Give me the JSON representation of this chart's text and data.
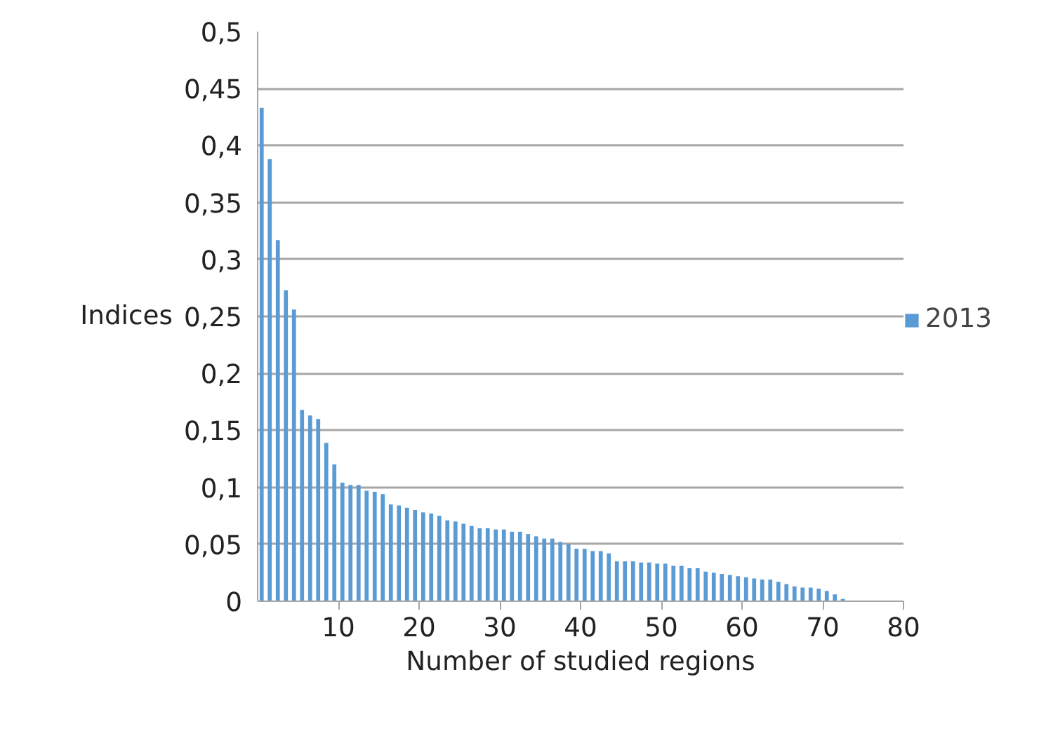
{
  "chart_data": {
    "type": "bar",
    "xlabel": "Number of studied regions",
    "ylabel": "Indices",
    "x": [
      0.5,
      1.5,
      2.5,
      3.5,
      4.5,
      5.5,
      6.5,
      7.5,
      8.5,
      9.5,
      10.5,
      11.5,
      12.5,
      13.5,
      14.5,
      15.5,
      16.5,
      17.5,
      18.5,
      19.5,
      20.5,
      21.5,
      22.5,
      23.5,
      24.5,
      25.5,
      26.5,
      27.5,
      28.5,
      29.5,
      30.5,
      31.5,
      32.5,
      33.5,
      34.5,
      35.5,
      36.5,
      37.5,
      38.5,
      39.5,
      40.5,
      41.5,
      42.5,
      43.5,
      44.5,
      45.5,
      46.5,
      47.5,
      48.5,
      49.5,
      50.5,
      51.5,
      52.5,
      53.5,
      54.5,
      55.5,
      56.5,
      57.5,
      58.5,
      59.5,
      60.5,
      61.5,
      62.5,
      63.5,
      64.5,
      65.5,
      66.5,
      67.5,
      68.5,
      69.5,
      70.5,
      71.5,
      72.5
    ],
    "series": [
      {
        "name": "2013",
        "color": "#5b9bd5",
        "values": [
          0.433,
          0.388,
          0.317,
          0.273,
          0.256,
          0.168,
          0.163,
          0.16,
          0.139,
          0.12,
          0.104,
          0.102,
          0.102,
          0.097,
          0.096,
          0.094,
          0.085,
          0.084,
          0.082,
          0.08,
          0.078,
          0.077,
          0.075,
          0.071,
          0.07,
          0.068,
          0.066,
          0.064,
          0.064,
          0.063,
          0.063,
          0.061,
          0.061,
          0.059,
          0.057,
          0.055,
          0.055,
          0.052,
          0.05,
          0.046,
          0.046,
          0.044,
          0.044,
          0.042,
          0.035,
          0.035,
          0.035,
          0.034,
          0.034,
          0.033,
          0.033,
          0.031,
          0.031,
          0.029,
          0.029,
          0.026,
          0.025,
          0.024,
          0.023,
          0.022,
          0.021,
          0.02,
          0.019,
          0.019,
          0.017,
          0.015,
          0.013,
          0.012,
          0.012,
          0.011,
          0.009,
          0.006,
          0.002
        ]
      }
    ],
    "xlim": [
      0,
      80
    ],
    "xticks": [
      10,
      20,
      30,
      40,
      50,
      60,
      70,
      80
    ],
    "ylim": [
      0,
      0.5
    ],
    "yticks": [
      {
        "value": 0,
        "label": "0"
      },
      {
        "value": 0.05,
        "label": "0,05"
      },
      {
        "value": 0.1,
        "label": "0,1"
      },
      {
        "value": 0.15,
        "label": "0,15"
      },
      {
        "value": 0.2,
        "label": "0,2"
      },
      {
        "value": 0.25,
        "label": "0,25"
      },
      {
        "value": 0.3,
        "label": "0,3"
      },
      {
        "value": 0.35,
        "label": "0,35"
      },
      {
        "value": 0.4,
        "label": "0,4"
      },
      {
        "value": 0.45,
        "label": "0,45"
      },
      {
        "value": 0.5,
        "label": "0,5"
      }
    ],
    "grid": "y",
    "legend": "right"
  }
}
